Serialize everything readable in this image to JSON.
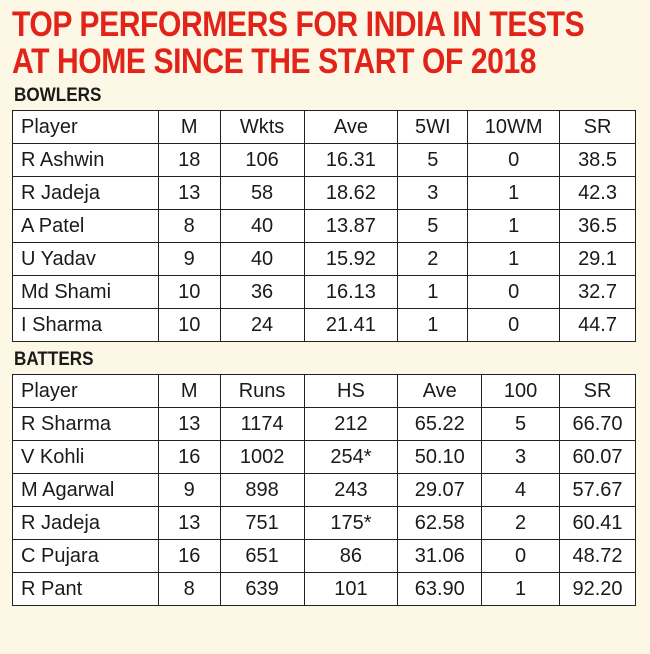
{
  "headline": [
    "TOP PERFORMERS FOR INDIA IN TESTS",
    "AT HOME SINCE THE START OF 2018"
  ],
  "bowlers": {
    "title": "BOWLERS",
    "columns": [
      "Player",
      "M",
      "Wkts",
      "Ave",
      "5WI",
      "10WM",
      "SR"
    ],
    "rows": [
      [
        "R Ashwin",
        "18",
        "106",
        "16.31",
        "5",
        "0",
        "38.5"
      ],
      [
        "R Jadeja",
        "13",
        "58",
        "18.62",
        "3",
        "1",
        "42.3"
      ],
      [
        "A Patel",
        "8",
        "40",
        "13.87",
        "5",
        "1",
        "36.5"
      ],
      [
        "U Yadav",
        "9",
        "40",
        "15.92",
        "2",
        "1",
        "29.1"
      ],
      [
        "Md Shami",
        "10",
        "36",
        "16.13",
        "1",
        "0",
        "32.7"
      ],
      [
        "I Sharma",
        "10",
        "24",
        "21.41",
        "1",
        "0",
        "44.7"
      ]
    ]
  },
  "batters": {
    "title": "BATTERS",
    "columns": [
      "Player",
      "M",
      "Runs",
      "HS",
      "Ave",
      "100",
      "SR"
    ],
    "rows": [
      [
        "R Sharma",
        "13",
        "1174",
        "212",
        "65.22",
        "5",
        "66.70"
      ],
      [
        "V Kohli",
        "16",
        "1002",
        "254*",
        "50.10",
        "3",
        "60.07"
      ],
      [
        "M Agarwal",
        "9",
        "898",
        "243",
        "29.07",
        "4",
        "57.67"
      ],
      [
        "R Jadeja",
        "13",
        "751",
        "175*",
        "62.58",
        "2",
        "60.41"
      ],
      [
        "C Pujara",
        "16",
        "651",
        "86",
        "31.06",
        "0",
        "48.72"
      ],
      [
        "R Pant",
        "8",
        "639",
        "101",
        "63.90",
        "1",
        "92.20"
      ]
    ]
  },
  "colors": {
    "headline": "#e2231a",
    "background": "#fdf8e6",
    "border": "#222222"
  }
}
